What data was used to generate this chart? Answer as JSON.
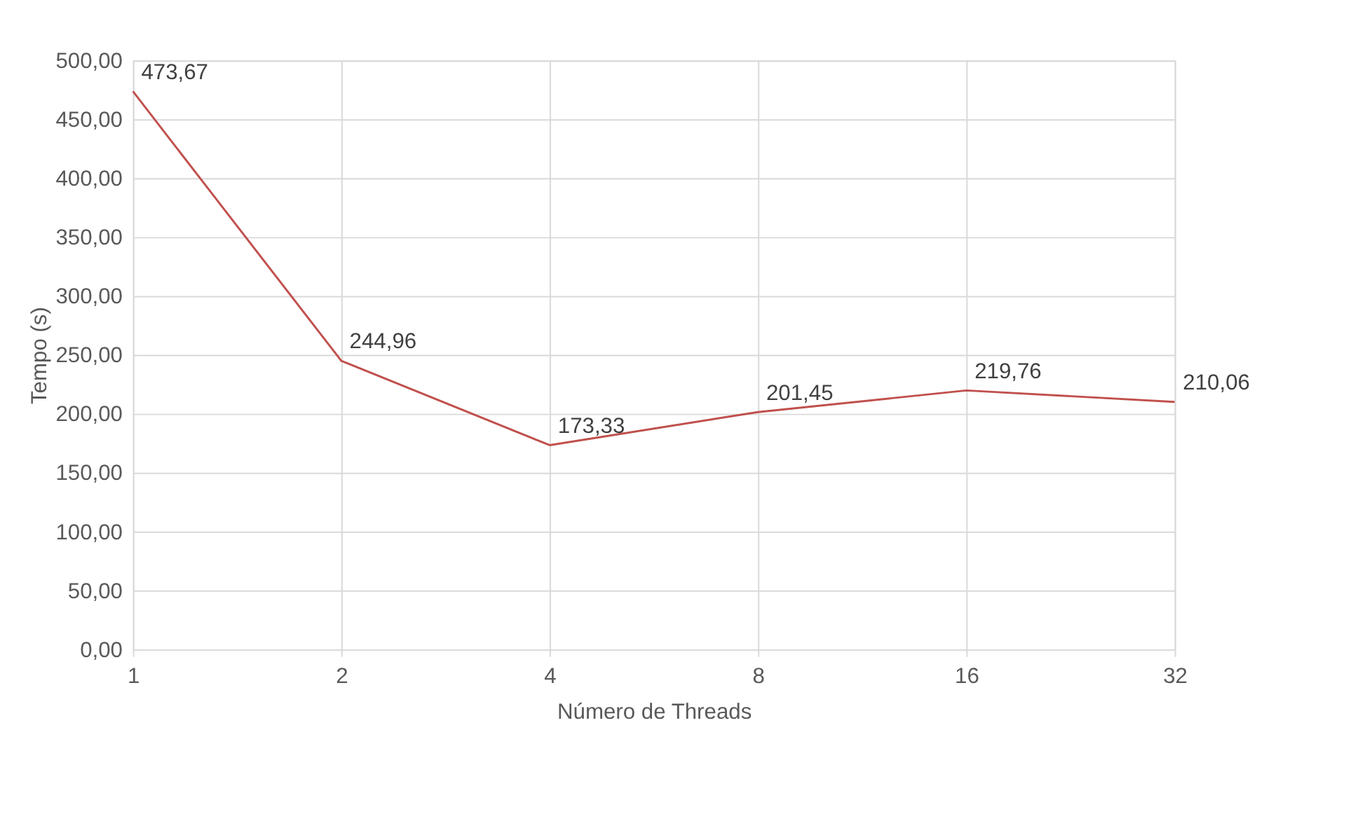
{
  "chart_data": {
    "type": "line",
    "xlabel": "Número de Threads",
    "ylabel": "Tempo (s)",
    "categories": [
      "1",
      "2",
      "4",
      "8",
      "16",
      "32"
    ],
    "series": [
      {
        "color": "#c0504d",
        "values": [
          473.67,
          244.96,
          173.33,
          201.45,
          219.76,
          210.06
        ],
        "value_labels": [
          "473,67",
          "244,96",
          "173,33",
          "201,45",
          "219,76",
          "210,06"
        ]
      }
    ],
    "ylim": [
      0,
      500
    ],
    "yticks": [
      {
        "value": 0,
        "label": "0,00"
      },
      {
        "value": 50,
        "label": "50,00"
      },
      {
        "value": 100,
        "label": "100,00"
      },
      {
        "value": 150,
        "label": "150,00"
      },
      {
        "value": 200,
        "label": "200,00"
      },
      {
        "value": 250,
        "label": "250,00"
      },
      {
        "value": 300,
        "label": "300,00"
      },
      {
        "value": 350,
        "label": "350,00"
      },
      {
        "value": 400,
        "label": "400,00"
      },
      {
        "value": 450,
        "label": "450,00"
      },
      {
        "value": 500,
        "label": "500,00"
      }
    ],
    "grid": true,
    "marker": "none",
    "line_style": "solid"
  }
}
